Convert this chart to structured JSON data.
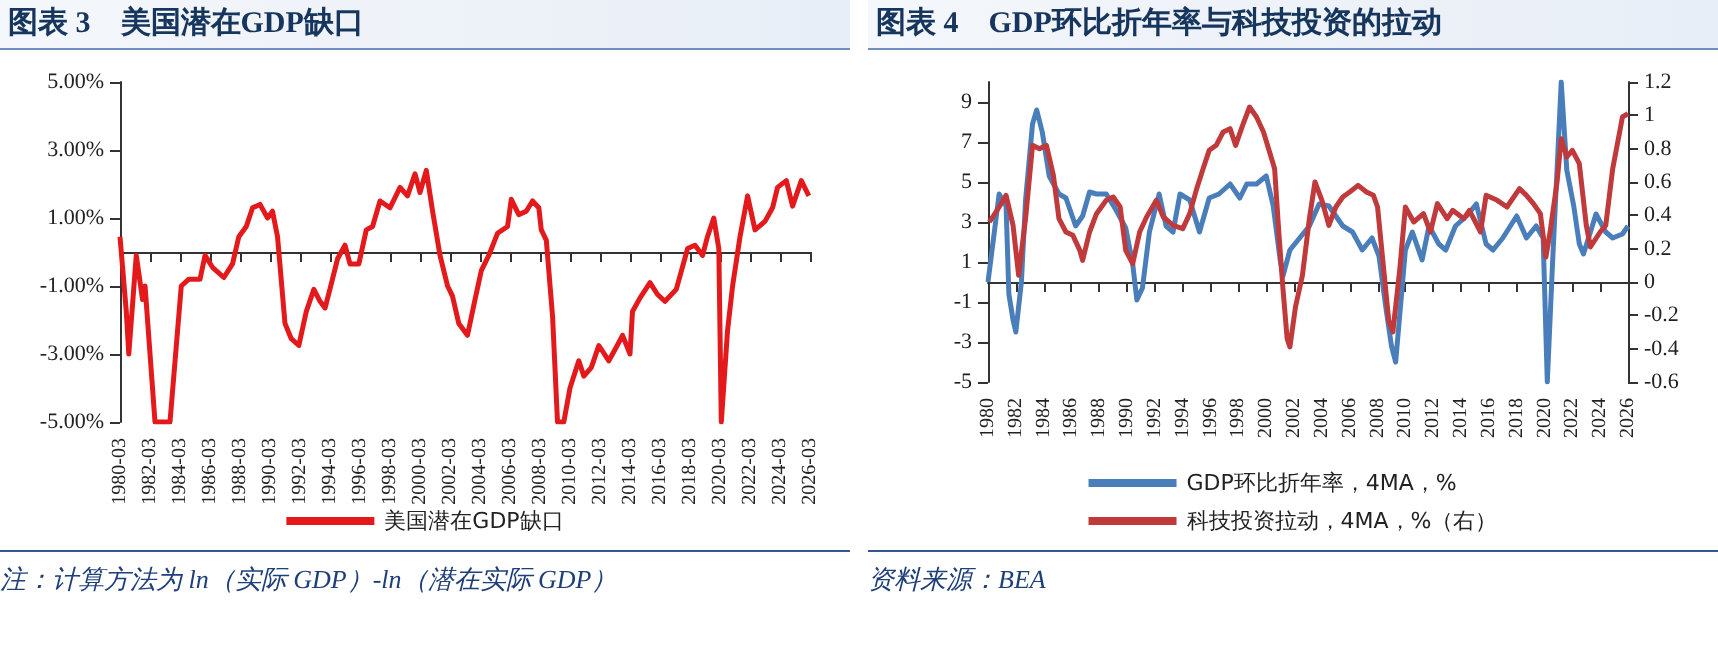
{
  "chart_data": [
    {
      "type": "line",
      "title": "图表 3　美国潜在GDP缺口",
      "annotations": [
        "注：计算方法为 ln（实际 GDP）-ln（潜在实际 GDP）"
      ],
      "xlim": [
        "1980-03",
        "2026-03"
      ],
      "xticks": [
        "1980-03",
        "1982-03",
        "1984-03",
        "1986-03",
        "1988-03",
        "1990-03",
        "1992-03",
        "1994-03",
        "1996-03",
        "1998-03",
        "2000-03",
        "2002-03",
        "2004-03",
        "2006-03",
        "2008-03",
        "2010-03",
        "2012-03",
        "2014-03",
        "2016-03",
        "2018-03",
        "2020-03",
        "2022-03",
        "2024-03",
        "2026-03"
      ],
      "ylim": [
        -5,
        5
      ],
      "yticks": [
        {
          "value": -5,
          "label": "-5.00%"
        },
        {
          "value": -3,
          "label": "-3.00%"
        },
        {
          "value": -1,
          "label": "-1.00%"
        },
        {
          "value": 1,
          "label": "1.00%"
        },
        {
          "value": 3,
          "label": "3.00%"
        },
        {
          "value": 5,
          "label": "5.00%"
        }
      ],
      "legend": "bottom",
      "series": [
        {
          "name": "美国潜在GDP缺口",
          "color": "#e3191c",
          "x": [
            "1980-03",
            "1980-08",
            "1980-10",
            "1981-04",
            "1981-09",
            "1981-11",
            "1982-07",
            "1983-07",
            "1984-04",
            "1984-10",
            "1985-07",
            "1985-11",
            "1986-05",
            "1987-02",
            "1987-09",
            "1988-02",
            "1988-08",
            "1989-01",
            "1989-07",
            "1990-01",
            "1990-05",
            "1990-09",
            "1991-03",
            "1991-08",
            "1992-02",
            "1992-08",
            "1993-02",
            "1993-07",
            "1993-11",
            "1994-05",
            "1994-09",
            "1995-03",
            "1995-07",
            "1996-02",
            "1996-08",
            "1997-01",
            "1997-07",
            "1998-03",
            "1998-11",
            "1999-05",
            "1999-11",
            "2000-03",
            "2000-08",
            "2001-01",
            "2001-07",
            "2002-01",
            "2002-05",
            "2002-10",
            "2003-05",
            "2003-11",
            "2004-04",
            "2004-10",
            "2005-05",
            "2006-01",
            "2006-04",
            "2006-10",
            "2007-04",
            "2007-09",
            "2008-02",
            "2008-04",
            "2008-08",
            "2009-01",
            "2009-05",
            "2009-10",
            "2010-03",
            "2010-10",
            "2011-02",
            "2011-08",
            "2012-02",
            "2012-10",
            "2013-04",
            "2013-09",
            "2014-03",
            "2014-05",
            "2014-11",
            "2015-07",
            "2016-01",
            "2016-07",
            "2017-04",
            "2018-01",
            "2018-07",
            "2019-01",
            "2019-05",
            "2019-10",
            "2020-02",
            "2020-04",
            "2020-09",
            "2021-01",
            "2021-07",
            "2022-01",
            "2022-07",
            "2023-03",
            "2023-09",
            "2024-01",
            "2024-08",
            "2025-01",
            "2025-08",
            "2026-02",
            "2026-03"
          ],
          "values": [
            0.45,
            -1.75,
            -3.0,
            -0.1,
            -1.4,
            -1.0,
            -5,
            -5,
            -1.0,
            -0.8,
            -0.8,
            -0.1,
            -0.45,
            -0.75,
            -0.35,
            0.45,
            0.75,
            1.3,
            1.4,
            1.0,
            1.2,
            0.45,
            -2.1,
            -2.55,
            -2.75,
            -1.75,
            -1.1,
            -1.45,
            -1.65,
            -0.8,
            -0.2,
            0.2,
            -0.35,
            -0.35,
            0.65,
            0.75,
            1.5,
            1.3,
            1.9,
            1.65,
            2.3,
            1.75,
            2.4,
            1.2,
            -0.1,
            -1.0,
            -1.3,
            -2.1,
            -2.45,
            -1.4,
            -0.55,
            -0.1,
            0.55,
            0.75,
            1.55,
            1.1,
            1.2,
            1.5,
            1.3,
            0.65,
            0.35,
            -1.9,
            -5,
            -5,
            -4.0,
            -3.2,
            -3.65,
            -3.4,
            -2.75,
            -3.2,
            -2.8,
            -2.45,
            -3.0,
            -1.75,
            -1.35,
            -0.9,
            -1.25,
            -1.45,
            -1.1,
            0.1,
            0.2,
            -0.1,
            0.45,
            1.0,
            0.1,
            -5,
            -2.3,
            -1.0,
            0.45,
            1.65,
            0.65,
            0.9,
            1.3,
            1.9,
            2.1,
            1.35,
            2.1,
            1.65,
            1.65
          ]
        }
      ]
    },
    {
      "type": "line",
      "title": "图表 4　GDP环比折年率与科技投资的拉动",
      "annotations": [
        "资料来源：BEA"
      ],
      "xlim": [
        1980,
        2026
      ],
      "xticks": [
        1980,
        1982,
        1984,
        1986,
        1988,
        1990,
        1992,
        1994,
        1996,
        1998,
        2000,
        2002,
        2004,
        2006,
        2008,
        2010,
        2012,
        2014,
        2016,
        2018,
        2020,
        2022,
        2024,
        2026
      ],
      "ylim": [
        -5,
        10
      ],
      "yticks": [
        -5,
        -3,
        -1,
        1,
        3,
        5,
        7,
        9
      ],
      "y2lim": [
        -0.6,
        1.2
      ],
      "y2ticks": [
        -0.6,
        -0.4,
        -0.2,
        0,
        0.2,
        0.4,
        0.6,
        0.8,
        1,
        1.2
      ],
      "legend": "bottom",
      "series": [
        {
          "name": "GDP环比折年率，4MA，%",
          "color": "#4a7ebb",
          "x": [
            1980.0,
            1980.8,
            1981.3,
            1981.5,
            1981.8,
            1982.0,
            1982.4,
            1982.7,
            1983.2,
            1983.5,
            1983.9,
            1984.4,
            1985.1,
            1985.6,
            1986.3,
            1986.8,
            1987.3,
            1987.8,
            1988.5,
            1989.2,
            1989.9,
            1990.4,
            1990.7,
            1991.1,
            1991.6,
            1992.3,
            1992.8,
            1993.3,
            1993.8,
            1994.5,
            1995.2,
            1995.9,
            1996.6,
            1997.4,
            1998.1,
            1998.6,
            1999.3,
            2000.0,
            2000.5,
            2001.0,
            2001.2,
            2001.7,
            2002.4,
            2003.1,
            2003.8,
            2004.5,
            2005.5,
            2006.2,
            2006.9,
            2007.6,
            2008.1,
            2008.6,
            2009.0,
            2009.3,
            2010.0,
            2010.5,
            2011.2,
            2011.7,
            2012.4,
            2012.9,
            2013.6,
            2014.4,
            2015.1,
            2015.8,
            2016.3,
            2017.0,
            2018.0,
            2018.7,
            2019.4,
            2019.9,
            2020.2,
            2020.6,
            2020.9,
            2021.2,
            2021.6,
            2022.1,
            2022.5,
            2022.8,
            2023.3,
            2023.7,
            2024.4,
            2024.9,
            2025.6,
            2026.0
          ],
          "values": [
            0,
            4.4,
            3.8,
            -0.6,
            -1.9,
            -2.5,
            0,
            4.1,
            7.9,
            8.6,
            7.5,
            5.3,
            4.4,
            4.2,
            2.8,
            3.3,
            4.5,
            4.4,
            4.4,
            3.6,
            2.7,
            0.9,
            -0.9,
            -0.3,
            2.5,
            4.4,
            2.8,
            2.5,
            4.4,
            4.1,
            2.5,
            4.2,
            4.4,
            4.9,
            4.2,
            4.9,
            4.9,
            5.3,
            3.8,
            1.1,
            0.3,
            1.6,
            2.2,
            2.8,
            3.9,
            3.8,
            2.8,
            2.5,
            1.6,
            2.2,
            1.3,
            -1.3,
            -3.2,
            -4.0,
            1.6,
            2.5,
            1.1,
            2.8,
            1.9,
            1.6,
            2.8,
            3.3,
            3.9,
            1.9,
            1.6,
            2.2,
            3.3,
            2.2,
            2.8,
            2.2,
            -5,
            1.3,
            5.6,
            10,
            5.6,
            3.8,
            1.9,
            1.4,
            2.5,
            3.4,
            2.5,
            2.2,
            2.4,
            2.8
          ]
        },
        {
          "name": "科技投资拉动，4MA，%（右）",
          "color": "#c0393b",
          "axis": "y2",
          "x": [
            1980.1,
            1980.8,
            1981.3,
            1981.8,
            1982.2,
            1982.7,
            1983.2,
            1983.7,
            1984.2,
            1984.7,
            1985.1,
            1985.6,
            1986.1,
            1986.6,
            1986.8,
            1987.3,
            1987.8,
            1988.5,
            1989.0,
            1989.5,
            1989.9,
            1990.4,
            1990.9,
            1991.4,
            1992.1,
            1992.6,
            1993.3,
            1994.0,
            1994.5,
            1995.0,
            1995.5,
            1995.9,
            1996.4,
            1996.9,
            1997.4,
            1997.8,
            1998.3,
            1998.8,
            1999.3,
            1999.8,
            2000.2,
            2000.6,
            2000.9,
            2001.2,
            2001.5,
            2001.7,
            2002.1,
            2002.6,
            2003.1,
            2003.5,
            2004.0,
            2004.5,
            2005.0,
            2005.5,
            2006.0,
            2006.6,
            2007.2,
            2007.7,
            2008.0,
            2008.4,
            2008.8,
            2009.1,
            2009.6,
            2010.0,
            2010.6,
            2011.3,
            2011.8,
            2012.3,
            2013.0,
            2013.4,
            2014.2,
            2014.6,
            2015.4,
            2015.8,
            2016.6,
            2017.3,
            2018.2,
            2018.7,
            2019.2,
            2019.7,
            2020.1,
            2020.4,
            2020.9,
            2021.2,
            2021.6,
            2022.0,
            2022.5,
            2023.0,
            2023.3,
            2024.0,
            2024.4,
            2024.9,
            2025.4,
            2025.6,
            2026.0
          ],
          "values": [
            0.36,
            0.45,
            0.52,
            0.34,
            0.04,
            0.38,
            0.82,
            0.8,
            0.82,
            0.64,
            0.38,
            0.3,
            0.28,
            0.19,
            0.13,
            0.3,
            0.41,
            0.49,
            0.51,
            0.45,
            0.19,
            0.11,
            0.3,
            0.39,
            0.49,
            0.39,
            0.34,
            0.32,
            0.41,
            0.56,
            0.69,
            0.79,
            0.82,
            0.9,
            0.92,
            0.82,
            0.94,
            1.05,
            0.99,
            0.9,
            0.79,
            0.68,
            0.3,
            -0.04,
            -0.34,
            -0.39,
            -0.15,
            0.04,
            0.38,
            0.6,
            0.49,
            0.34,
            0.45,
            0.51,
            0.54,
            0.58,
            0.54,
            0.52,
            0.45,
            0.11,
            -0.23,
            -0.3,
            0.08,
            0.45,
            0.36,
            0.41,
            0.3,
            0.47,
            0.38,
            0.43,
            0.38,
            0.43,
            0.3,
            0.52,
            0.49,
            0.45,
            0.56,
            0.52,
            0.47,
            0.41,
            0.15,
            0.3,
            0.6,
            0.86,
            0.75,
            0.79,
            0.71,
            0.34,
            0.21,
            0.3,
            0.34,
            0.68,
            0.9,
            0.99,
            1.01
          ]
        }
      ]
    }
  ]
}
